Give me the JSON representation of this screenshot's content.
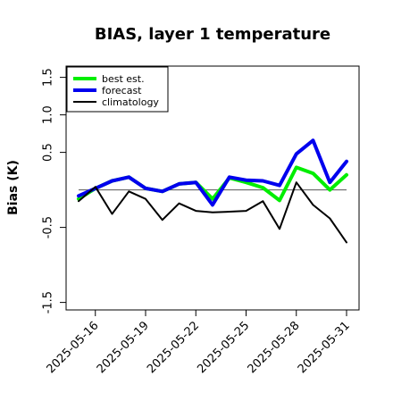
{
  "chart_data": {
    "type": "line",
    "title": "BIAS, layer 1 temperature",
    "xlabel": "",
    "ylabel": "Bias (K)",
    "x": [
      "2025-05-15",
      "2025-05-16",
      "2025-05-17",
      "2025-05-18",
      "2025-05-19",
      "2025-05-20",
      "2025-05-21",
      "2025-05-22",
      "2025-05-23",
      "2025-05-24",
      "2025-05-25",
      "2025-05-26",
      "2025-05-27",
      "2025-05-28",
      "2025-05-29",
      "2025-05-30",
      "2025-05-31"
    ],
    "xticks": [
      "2025-05-16",
      "2025-05-19",
      "2025-05-22",
      "2025-05-25",
      "2025-05-28",
      "2025-05-31"
    ],
    "highlight_tick": "2025-05-22",
    "highlight_color": "#228B22",
    "yticks": [
      "-1.5",
      "-0.5",
      "0.5",
      "1.0",
      "1.5"
    ],
    "ylim": [
      -1.6,
      1.65
    ],
    "reference_line": 0,
    "grid": false,
    "legend_position": "top-left",
    "series": [
      {
        "name": "best est.",
        "color": "#00ee00",
        "width": 4,
        "values": [
          -0.12,
          0.02,
          0.12,
          0.17,
          0.02,
          -0.02,
          0.08,
          0.1,
          -0.12,
          0.16,
          0.1,
          0.03,
          -0.14,
          0.3,
          0.22,
          0.0,
          0.2
        ]
      },
      {
        "name": "forecast",
        "color": "#0000ee",
        "width": 4,
        "values": [
          -0.08,
          0.02,
          0.12,
          0.17,
          0.02,
          -0.02,
          0.08,
          0.1,
          -0.2,
          0.17,
          0.13,
          0.12,
          0.06,
          0.48,
          0.66,
          0.1,
          0.38
        ]
      },
      {
        "name": "climatology",
        "color": "#000000",
        "width": 2,
        "values": [
          -0.15,
          0.04,
          -0.32,
          -0.02,
          -0.12,
          -0.4,
          -0.18,
          -0.28,
          -0.3,
          -0.29,
          -0.28,
          -0.15,
          -0.52,
          0.1,
          -0.2,
          -0.38,
          -0.7
        ]
      }
    ]
  }
}
